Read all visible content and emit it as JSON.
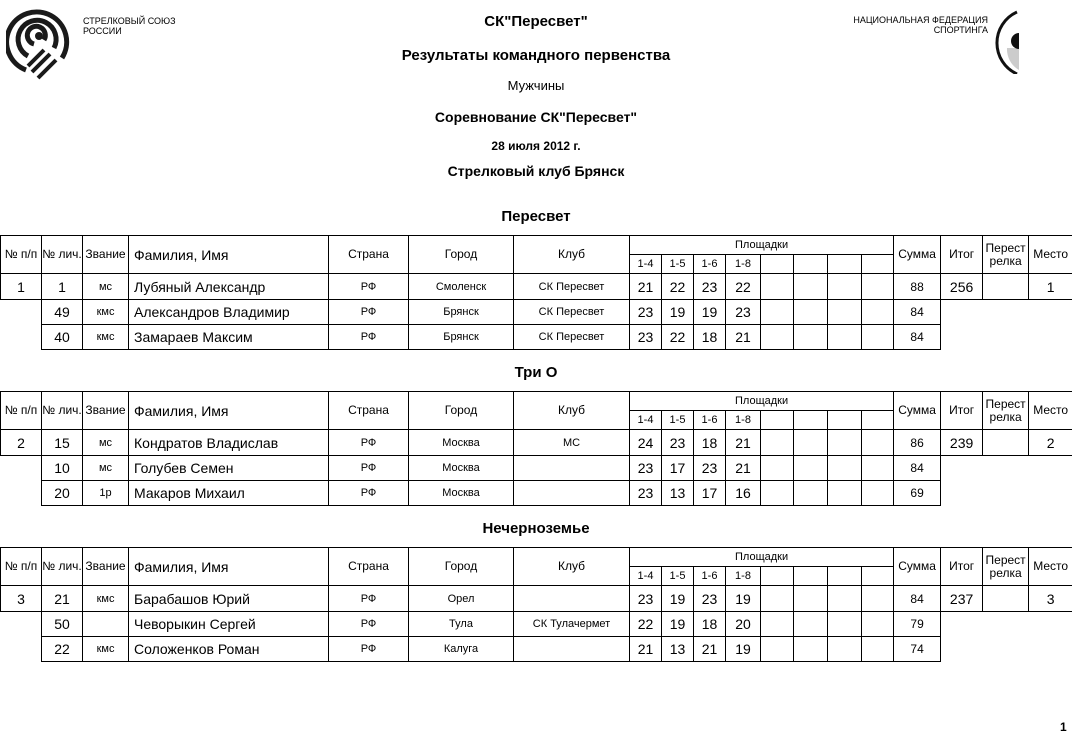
{
  "header": {
    "left_org_line1": "СТРЕЛКОВЫЙ СОЮЗ",
    "left_org_line2": "РОССИИ",
    "right_org_line1": "НАЦИОНАЛЬНАЯ ФЕДЕРАЦИЯ",
    "right_org_line2": "СПОРТИНГА",
    "club_title": "СК\"Пересвет\"",
    "title": "Результаты командного первенства",
    "category": "Мужчины",
    "competition": "Соревнование СК\"Пересвет\"",
    "date": "28 июля 2012 г.",
    "venue": "Стрелковый клуб Брянск"
  },
  "columns": {
    "num_pp": "№ п/п",
    "num_lic": "№ лич.",
    "rank": "Звание",
    "name": "Фамилия, Имя",
    "country": "Страна",
    "city": "Город",
    "club": "Клуб",
    "ranges": "Площадки",
    "range_labels": [
      "1-4",
      "1-5",
      "1-6",
      "1-8",
      "",
      "",
      "",
      ""
    ],
    "sum": "Сумма",
    "total": "Итог",
    "shootoff": "Перест релка",
    "place": "Место"
  },
  "teams": [
    {
      "name": "Пересвет",
      "num": "1",
      "total": "256",
      "shootoff": "",
      "place": "1",
      "members": [
        {
          "lic": "1",
          "rank": "мс",
          "name": "Лубяный Александр",
          "country": "РФ",
          "city": "Смоленск",
          "club": "СК Пересвет",
          "scores": [
            "21",
            "22",
            "23",
            "22",
            "",
            "",
            "",
            ""
          ],
          "sum": "88"
        },
        {
          "lic": "49",
          "rank": "кмс",
          "name": "Александров Владимир",
          "country": "РФ",
          "city": "Брянск",
          "club": "СК Пересвет",
          "scores": [
            "23",
            "19",
            "19",
            "23",
            "",
            "",
            "",
            ""
          ],
          "sum": "84"
        },
        {
          "lic": "40",
          "rank": "кмс",
          "name": "Замараев Максим",
          "country": "РФ",
          "city": "Брянск",
          "club": "СК Пересвет",
          "scores": [
            "23",
            "22",
            "18",
            "21",
            "",
            "",
            "",
            ""
          ],
          "sum": "84"
        }
      ]
    },
    {
      "name": "Три О",
      "num": "2",
      "total": "239",
      "shootoff": "",
      "place": "2",
      "members": [
        {
          "lic": "15",
          "rank": "мс",
          "name": "Кондратов Владислав",
          "country": "РФ",
          "city": "Москва",
          "club": "МС",
          "scores": [
            "24",
            "23",
            "18",
            "21",
            "",
            "",
            "",
            ""
          ],
          "sum": "86"
        },
        {
          "lic": "10",
          "rank": "мс",
          "name": "Голубев Семен",
          "country": "РФ",
          "city": "Москва",
          "club": "",
          "scores": [
            "23",
            "17",
            "23",
            "21",
            "",
            "",
            "",
            ""
          ],
          "sum": "84"
        },
        {
          "lic": "20",
          "rank": "1р",
          "name": "Макаров Михаил",
          "country": "РФ",
          "city": "Москва",
          "club": "",
          "scores": [
            "23",
            "13",
            "17",
            "16",
            "",
            "",
            "",
            ""
          ],
          "sum": "69"
        }
      ]
    },
    {
      "name": "Нечерноземье",
      "num": "3",
      "total": "237",
      "shootoff": "",
      "place": "3",
      "members": [
        {
          "lic": "21",
          "rank": "кмс",
          "name": "Барабашов Юрий",
          "country": "РФ",
          "city": "Орел",
          "club": "",
          "scores": [
            "23",
            "19",
            "23",
            "19",
            "",
            "",
            "",
            ""
          ],
          "sum": "84"
        },
        {
          "lic": "50",
          "rank": "",
          "name": "Чеворыкин Сергей",
          "country": "РФ",
          "city": "Тула",
          "club": "СК Тулачермет",
          "scores": [
            "22",
            "19",
            "18",
            "20",
            "",
            "",
            "",
            ""
          ],
          "sum": "79"
        },
        {
          "lic": "22",
          "rank": "кмс",
          "name": "Соложенков Роман",
          "country": "РФ",
          "city": "Калуга",
          "club": "",
          "scores": [
            "21",
            "13",
            "21",
            "19",
            "",
            "",
            "",
            ""
          ],
          "sum": "74"
        }
      ]
    }
  ],
  "page_number": "1"
}
